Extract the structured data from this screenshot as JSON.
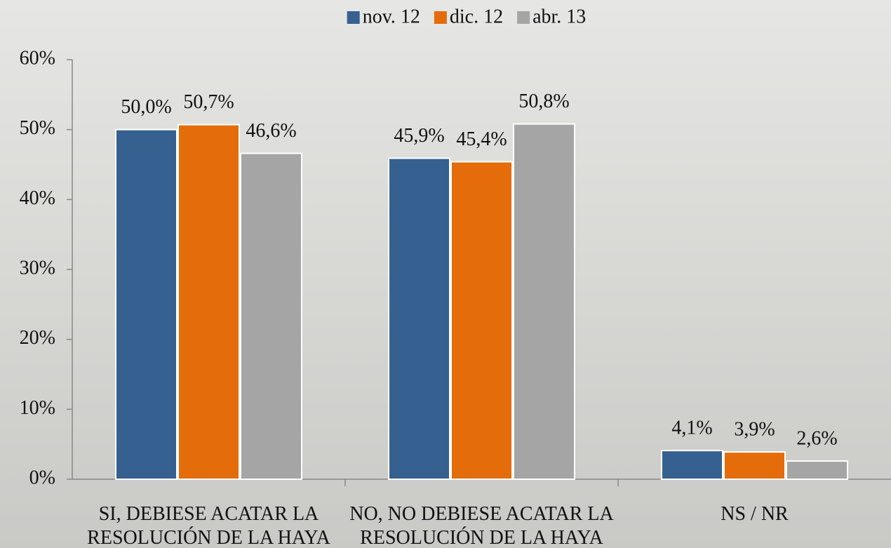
{
  "chart_data": {
    "type": "bar",
    "categories": [
      "SI, DEBIESE ACATAR LA\nRESOLUCIÓN DE LA HAYA",
      "NO, NO DEBIESE ACATAR LA\nRESOLUCIÓN DE LA HAYA",
      "NS / NR"
    ],
    "series": [
      {
        "name": "nov. 12",
        "color": "#36608f",
        "values": [
          50.0,
          45.9,
          4.1
        ],
        "value_labels": [
          "50,0%",
          "45,9%",
          "4,1%"
        ]
      },
      {
        "name": "dic. 12",
        "color": "#e46c0a",
        "values": [
          50.7,
          45.4,
          3.9
        ],
        "value_labels": [
          "50,7%",
          "45,4%",
          "3,9%"
        ]
      },
      {
        "name": "abr. 13",
        "color": "#a5a5a5",
        "values": [
          46.6,
          50.8,
          2.6
        ],
        "value_labels": [
          "46,6%",
          "50,8%",
          "2,6%"
        ]
      }
    ],
    "ylim": [
      0,
      60
    ],
    "yticks": [
      {
        "value": 0,
        "label": "0%"
      },
      {
        "value": 10,
        "label": "10%"
      },
      {
        "value": 20,
        "label": "20%"
      },
      {
        "value": 30,
        "label": "30%"
      },
      {
        "value": 40,
        "label": "40%"
      },
      {
        "value": 50,
        "label": "50%"
      },
      {
        "value": 60,
        "label": "60%"
      }
    ],
    "grid": false,
    "legend": "top"
  }
}
